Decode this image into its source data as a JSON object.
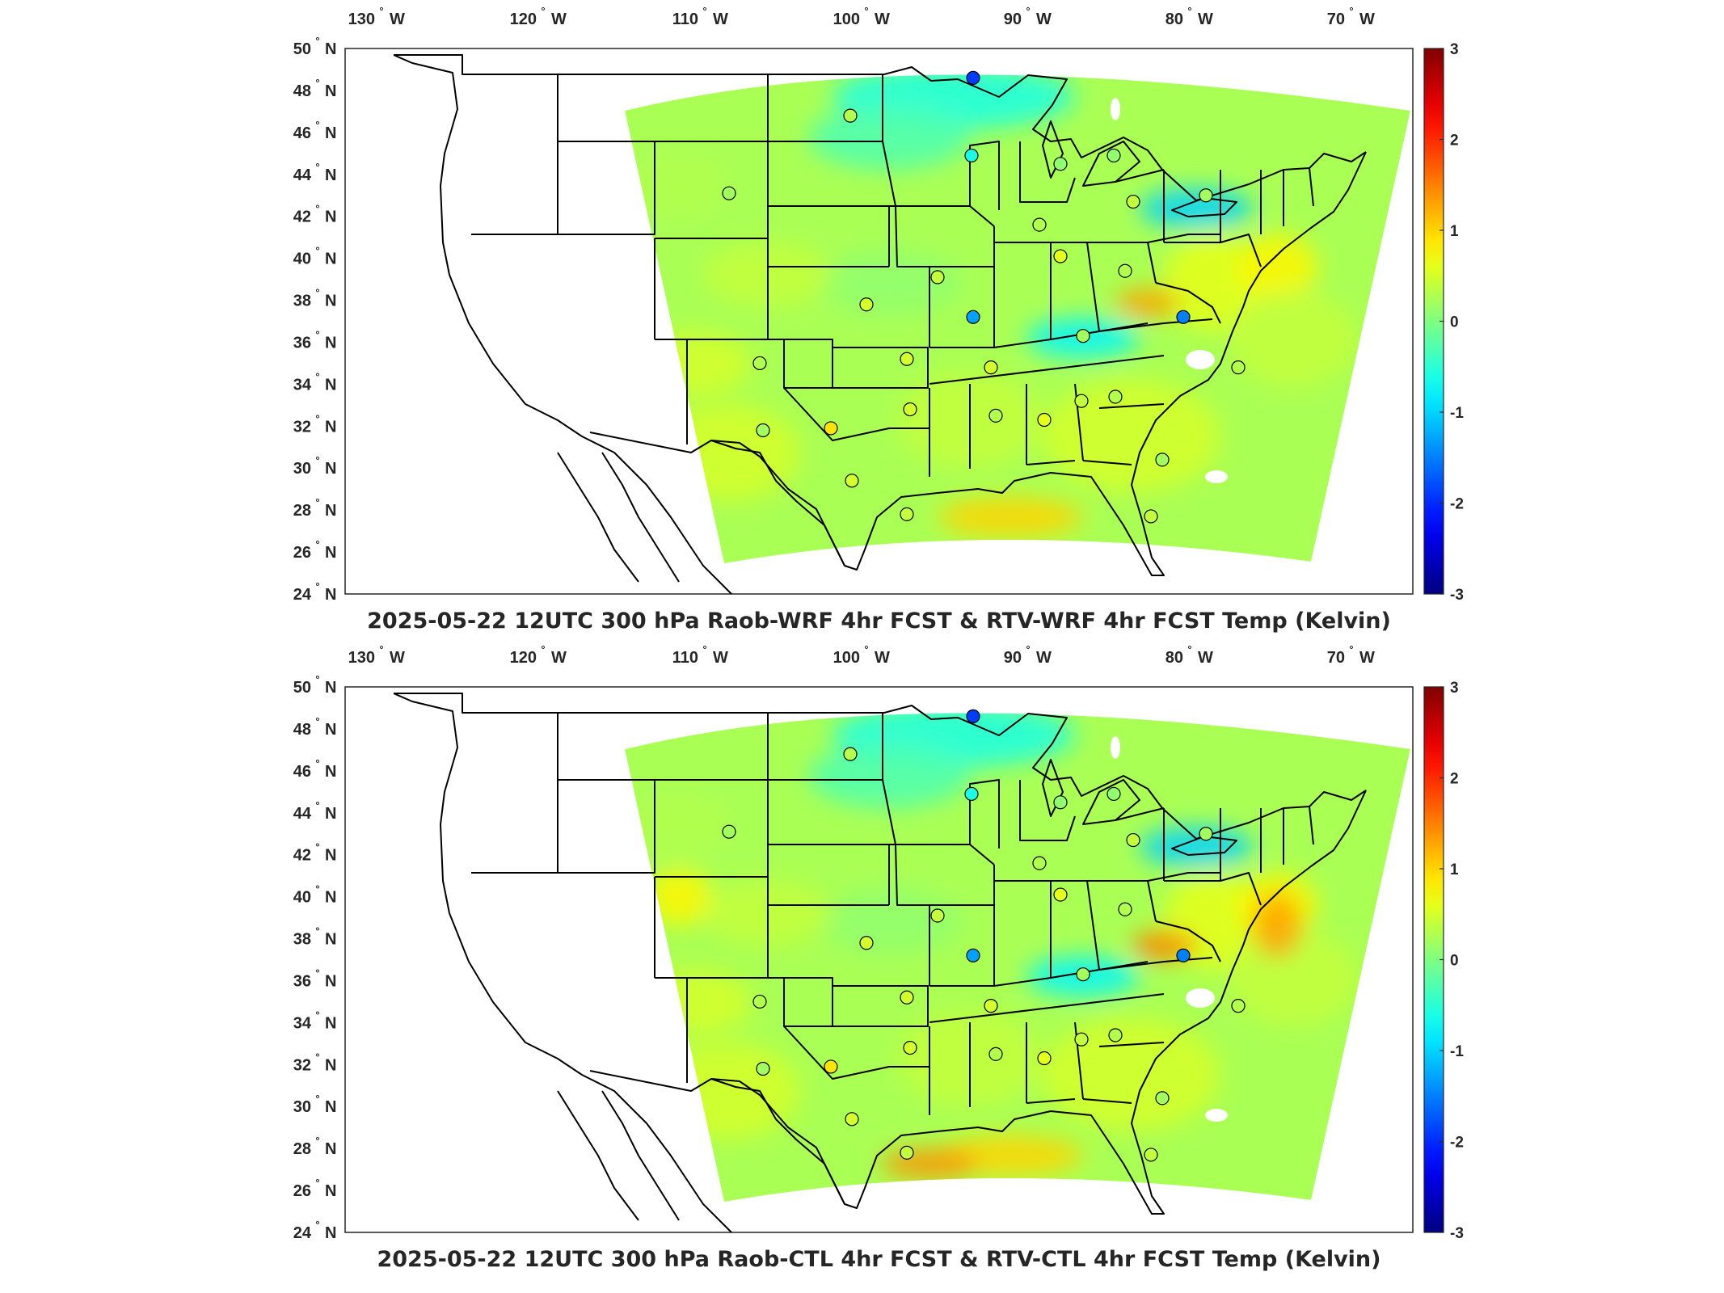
{
  "panels": [
    {
      "title": "2025-05-22 12UTC 300 hPa Raob-WRF 4hr FCST & RTV-WRF 4hr FCST Temp (Kelvin)",
      "variant": "wrf"
    },
    {
      "title": "2025-05-22 12UTC 300 hPa Raob-CTL 4hr FCST & RTV-CTL 4hr FCST Temp (Kelvin)",
      "variant": "ctl"
    }
  ],
  "lon_labels": [
    "130",
    "120",
    "110",
    "100",
    "90",
    "80",
    "70"
  ],
  "lon_suffix": "W",
  "lat_labels": [
    "50",
    "48",
    "46",
    "44",
    "42",
    "40",
    "38",
    "36",
    "34",
    "32",
    "30",
    "28",
    "26",
    "24"
  ],
  "lat_suffix": "N",
  "degree_symbol": "°",
  "colorbar": {
    "ticks": [
      "3",
      "2",
      "1",
      "0",
      "-1",
      "-2",
      "-3"
    ],
    "range": [
      -3,
      3
    ],
    "colormap": "jet"
  },
  "chart_data": {
    "type": "map",
    "units": "Kelvin",
    "raob_stations_diff": [
      {
        "lon": -93.4,
        "lat": 48.6,
        "v_wrf": -1.9,
        "v_ctl": -1.9
      },
      {
        "lon": -101.0,
        "lat": 46.8,
        "v_wrf": 0.3,
        "v_ctl": 0.3
      },
      {
        "lon": -93.5,
        "lat": 44.9,
        "v_wrf": -0.6,
        "v_ctl": -0.6
      },
      {
        "lon": -88.0,
        "lat": 44.5,
        "v_wrf": 0.1,
        "v_ctl": 0.1
      },
      {
        "lon": -84.7,
        "lat": 44.9,
        "v_wrf": 0.1,
        "v_ctl": 0.1
      },
      {
        "lon": -108.5,
        "lat": 43.1,
        "v_wrf": 0.2,
        "v_ctl": 0.2
      },
      {
        "lon": -89.3,
        "lat": 41.6,
        "v_wrf": 0.3,
        "v_ctl": 0.3
      },
      {
        "lon": -83.5,
        "lat": 42.7,
        "v_wrf": 0.4,
        "v_ctl": 0.4
      },
      {
        "lon": -79.0,
        "lat": 43.0,
        "v_wrf": 0.2,
        "v_ctl": 0.2
      },
      {
        "lon": -88.0,
        "lat": 40.1,
        "v_wrf": 0.6,
        "v_ctl": 0.6
      },
      {
        "lon": -95.6,
        "lat": 39.1,
        "v_wrf": 0.4,
        "v_ctl": 0.4
      },
      {
        "lon": -84.0,
        "lat": 39.4,
        "v_wrf": 0.3,
        "v_ctl": 0.3
      },
      {
        "lon": -100.0,
        "lat": 37.8,
        "v_wrf": 0.5,
        "v_ctl": 0.5
      },
      {
        "lon": -93.4,
        "lat": 37.2,
        "v_wrf": -1.3,
        "v_ctl": -1.3
      },
      {
        "lon": -80.4,
        "lat": 37.2,
        "v_wrf": -1.5,
        "v_ctl": -1.5
      },
      {
        "lon": -86.6,
        "lat": 36.3,
        "v_wrf": 0.2,
        "v_ctl": 0.2
      },
      {
        "lon": -106.6,
        "lat": 35.0,
        "v_wrf": 0.3,
        "v_ctl": 0.3
      },
      {
        "lon": -97.5,
        "lat": 35.2,
        "v_wrf": 0.5,
        "v_ctl": 0.5
      },
      {
        "lon": -92.3,
        "lat": 34.8,
        "v_wrf": 0.5,
        "v_ctl": 0.5
      },
      {
        "lon": -77.0,
        "lat": 34.8,
        "v_wrf": 0.3,
        "v_ctl": 0.3
      },
      {
        "lon": -97.3,
        "lat": 32.8,
        "v_wrf": 0.5,
        "v_ctl": 0.5
      },
      {
        "lon": -86.7,
        "lat": 33.2,
        "v_wrf": 0.4,
        "v_ctl": 0.4
      },
      {
        "lon": -84.6,
        "lat": 33.4,
        "v_wrf": 0.3,
        "v_ctl": 0.3
      },
      {
        "lon": -92.0,
        "lat": 32.5,
        "v_wrf": 0.3,
        "v_ctl": 0.3
      },
      {
        "lon": -89.0,
        "lat": 32.3,
        "v_wrf": 0.6,
        "v_ctl": 0.6
      },
      {
        "lon": -106.4,
        "lat": 31.8,
        "v_wrf": 0.2,
        "v_ctl": 0.2
      },
      {
        "lon": -102.2,
        "lat": 31.9,
        "v_wrf": 0.9,
        "v_ctl": 0.9
      },
      {
        "lon": -81.7,
        "lat": 30.4,
        "v_wrf": 0.2,
        "v_ctl": 0.2
      },
      {
        "lon": -100.9,
        "lat": 29.4,
        "v_wrf": 0.5,
        "v_ctl": 0.5
      },
      {
        "lon": -97.5,
        "lat": 27.8,
        "v_wrf": 0.4,
        "v_ctl": 0.4
      },
      {
        "lon": -82.4,
        "lat": 27.7,
        "v_wrf": 0.4,
        "v_ctl": 0.4
      }
    ]
  }
}
